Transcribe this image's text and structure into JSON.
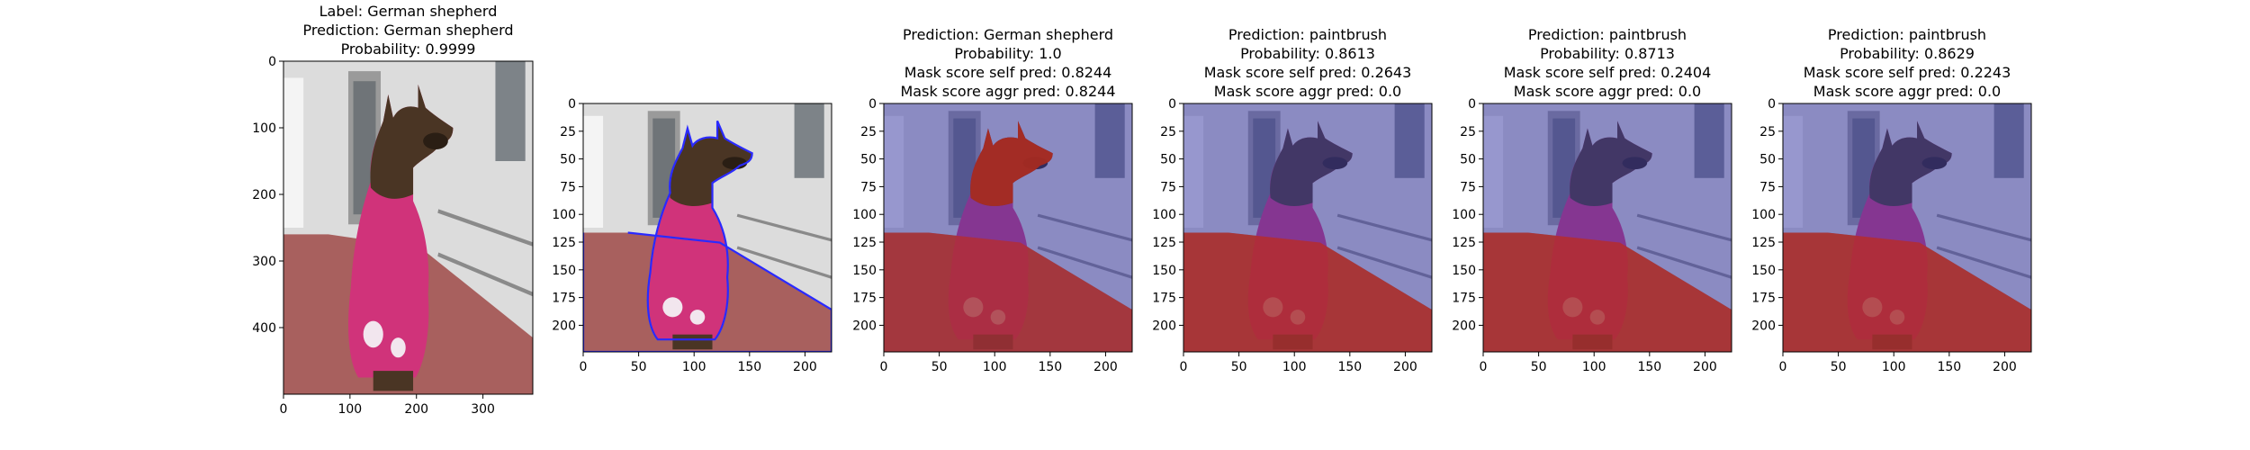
{
  "chart_data": [
    {
      "type": "image",
      "title_lines": [
        "Label: German shepherd",
        "Prediction: German shepherd",
        "Probability: 0.9999"
      ],
      "xlim": [
        0,
        375
      ],
      "ylim": [
        500,
        0
      ],
      "xticks": [
        0,
        100,
        200,
        300
      ],
      "yticks": [
        0,
        100,
        200,
        300,
        400
      ],
      "overlay": "none"
    },
    {
      "type": "image",
      "title_lines": [],
      "xlim": [
        0,
        224
      ],
      "ylim": [
        224,
        0
      ],
      "xticks": [
        0,
        50,
        100,
        150,
        200
      ],
      "yticks": [
        0,
        25,
        50,
        75,
        100,
        125,
        150,
        175,
        200
      ],
      "overlay": "contour"
    },
    {
      "type": "image",
      "title_lines": [
        "Prediction: German shepherd",
        "Probability: 1.0",
        "Mask score self pred: 0.8244",
        "Mask score aggr pred: 0.8244"
      ],
      "xlim": [
        0,
        224
      ],
      "ylim": [
        224,
        0
      ],
      "xticks": [
        0,
        50,
        100,
        150,
        200
      ],
      "yticks": [
        0,
        25,
        50,
        75,
        100,
        125,
        150,
        175,
        200
      ],
      "overlay": "head-red"
    },
    {
      "type": "image",
      "title_lines": [
        "Prediction: paintbrush",
        "Probability: 0.8613",
        "Mask score self pred: 0.2643",
        "Mask score aggr pred: 0.0"
      ],
      "xlim": [
        0,
        224
      ],
      "ylim": [
        224,
        0
      ],
      "xticks": [
        0,
        50,
        100,
        150,
        200
      ],
      "yticks": [
        0,
        25,
        50,
        75,
        100,
        125,
        150,
        175,
        200
      ],
      "overlay": "floor-red"
    },
    {
      "type": "image",
      "title_lines": [
        "Prediction: paintbrush",
        "Probability: 0.8713",
        "Mask score self pred: 0.2404",
        "Mask score aggr pred: 0.0"
      ],
      "xlim": [
        0,
        224
      ],
      "ylim": [
        224,
        0
      ],
      "xticks": [
        0,
        50,
        100,
        150,
        200
      ],
      "yticks": [
        0,
        25,
        50,
        75,
        100,
        125,
        150,
        175,
        200
      ],
      "overlay": "floor-red"
    },
    {
      "type": "image",
      "title_lines": [
        "Prediction: paintbrush",
        "Probability: 0.8629",
        "Mask score self pred: 0.2243",
        "Mask score aggr pred: 0.0"
      ],
      "xlim": [
        0,
        224
      ],
      "ylim": [
        224,
        0
      ],
      "xticks": [
        0,
        50,
        100,
        150,
        200
      ],
      "yticks": [
        0,
        25,
        50,
        75,
        100,
        125,
        150,
        175,
        200
      ],
      "overlay": "floor-red"
    }
  ],
  "colors": {
    "wall": "#dcdcdc",
    "floor": "#a8605e",
    "coat": "#d0337a",
    "dog": "#4a3524",
    "blue_tint": "#3a3aa8",
    "red_tint": "#c42a10",
    "contour": "#2a2aff"
  }
}
